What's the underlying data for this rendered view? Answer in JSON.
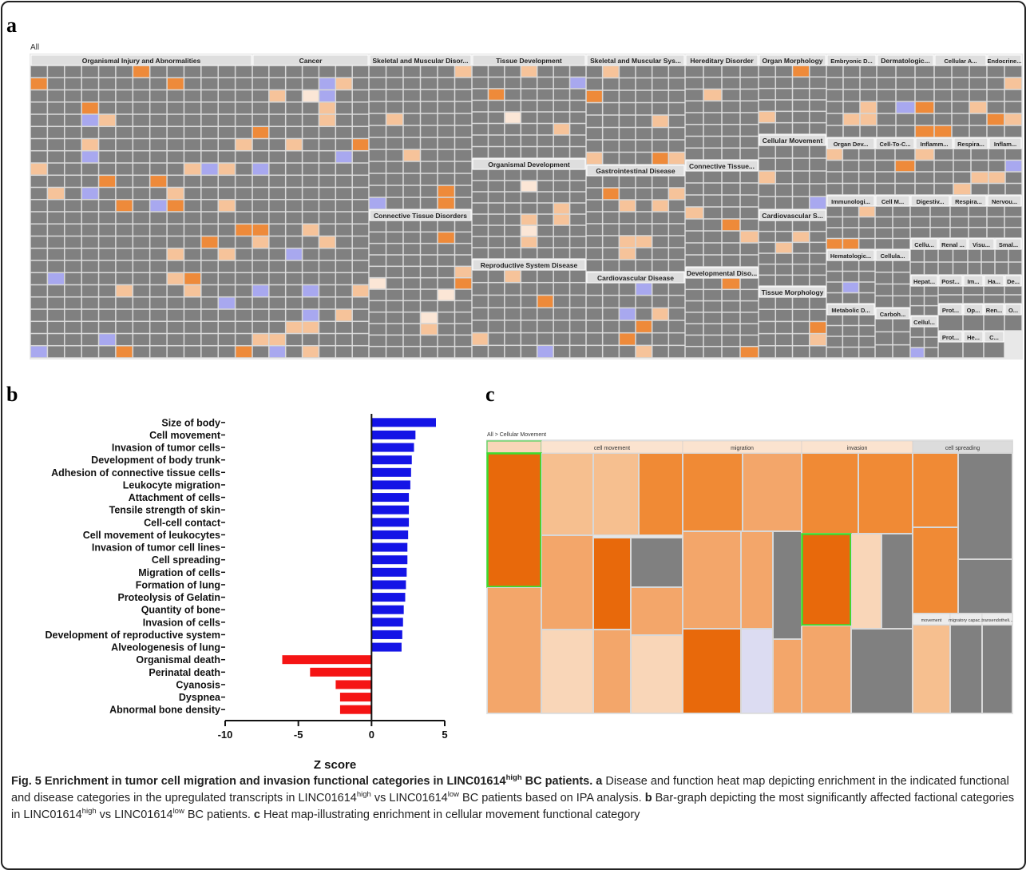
{
  "figure_a": {
    "label": "a",
    "root": "All",
    "categories": [
      "Organismal Injury and Abnormalities",
      "Cancer",
      "Skeletal and Muscular Disor...",
      "Connective Tissue Disorders",
      "Tissue Development",
      "Organismal Development",
      "Reproductive System Disease",
      "Skeletal and Muscular Sys...",
      "Gastrointestinal Disease",
      "Cardiovascular Disease",
      "Hereditary Disorder",
      "Connective Tissue...",
      "Developmental Diso...",
      "Organ Morphology",
      "Cellular Movement",
      "Cardiovascular S...",
      "Tissue Morphology",
      "Embryonic D...",
      "Dermatologic...",
      "Cellular A...",
      "Endocrine...",
      "Organ Dev...",
      "Cell-To-C...",
      "Inflamm...",
      "Respira...",
      "Inflam...",
      "Immunologi...",
      "Cell M...",
      "Digestiv...",
      "Respira...",
      "Nervou...",
      "Hematologic...",
      "Cellula...",
      "Cellu...",
      "Renal ...",
      "Visu...",
      "Smal...",
      "Hepat...",
      "Post...",
      "Im...",
      "Ha...",
      "De...",
      "Metabolic D...",
      "Carboh...",
      "Cellul...",
      "Prot...",
      "Op...",
      "Ren...",
      "O...",
      "Prot...",
      "He...",
      "C..."
    ]
  },
  "chart_data": {
    "type": "bar",
    "orientation": "horizontal",
    "panel_label": "b",
    "categories": [
      "Size of body",
      "Cell movement",
      "Invasion of tumor cells",
      "Development of body trunk",
      "Adhesion of connective tissue cells",
      "Leukocyte migration",
      "Attachment of cells",
      "Tensile strength of skin",
      "Cell-cell contact",
      "Cell movement of leukocytes",
      "Invasion of tumor cell lines",
      "Cell spreading",
      "Migration of cells",
      "Formation of lung",
      "Proteolysis of Gelatin",
      "Quantity of bone",
      "Invasion of cells",
      "Development of reproductive system",
      "Alveologenesis of lung",
      "Organismal death",
      "Perinatal death",
      "Cyanosis",
      "Dyspnea",
      "Abnormal bone density"
    ],
    "values": [
      4.4,
      3.0,
      2.9,
      2.75,
      2.7,
      2.65,
      2.55,
      2.55,
      2.55,
      2.5,
      2.45,
      2.45,
      2.4,
      2.35,
      2.3,
      2.2,
      2.15,
      2.1,
      2.05,
      -6.1,
      -4.2,
      -2.45,
      -2.15,
      -2.15
    ],
    "positive_color": "#1414e6",
    "negative_color": "#f51414",
    "xlim": [
      -10,
      5
    ],
    "xticks": [
      -10,
      -5,
      0,
      5
    ],
    "xlabel": "Z score"
  },
  "figure_c": {
    "label": "c",
    "breadcrumb": "All > Cellular Movement",
    "headers": [
      "cell movement",
      "migration",
      "invasion",
      "cell spreading"
    ],
    "subheaders": [
      "movement",
      "migratory capac...",
      "transendotheli..."
    ]
  },
  "caption": {
    "segments": [
      "Fig. 5 Enrichment in tumor cell migration and invasion functional categories in LINC01614",
      "high",
      " BC patients.",
      " a",
      " Disease and function heat map depicting enrichment in the indicated functional and disease categories in the upregulated transcripts in LINC01614",
      "high",
      " vs LINC01614",
      "low",
      " BC patients based on IPA analysis.",
      " b",
      " Bar-graph depicting the most significantly affected factional categories in LINC01614",
      "high",
      " vs LINC01614",
      "low",
      " BC patients.",
      " c",
      " Heat map-illustrating enrichment in cellular movement functional category"
    ]
  }
}
